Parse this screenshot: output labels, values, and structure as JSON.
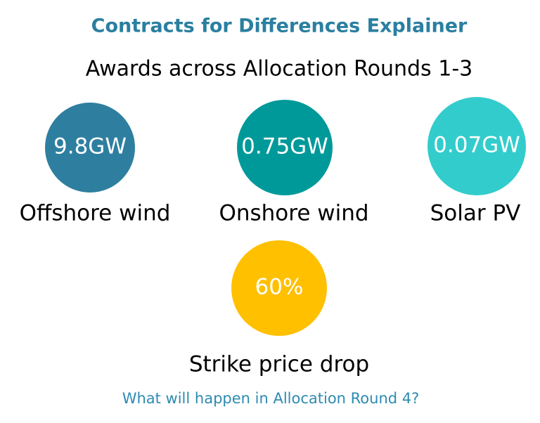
{
  "header": {
    "title": "Contracts for Differences Explainer",
    "subtitle": "Awards across Allocation Rounds 1-3"
  },
  "stats": [
    {
      "value": "9.8GW",
      "label": "Offshore wind"
    },
    {
      "value": "0.75GW",
      "label": "Onshore wind"
    },
    {
      "value": "0.07GW",
      "label": "Solar PV"
    },
    {
      "value": "60%",
      "label": "Strike price drop"
    }
  ],
  "footer": {
    "question": "What will happen in Allocation Round 4?"
  }
}
